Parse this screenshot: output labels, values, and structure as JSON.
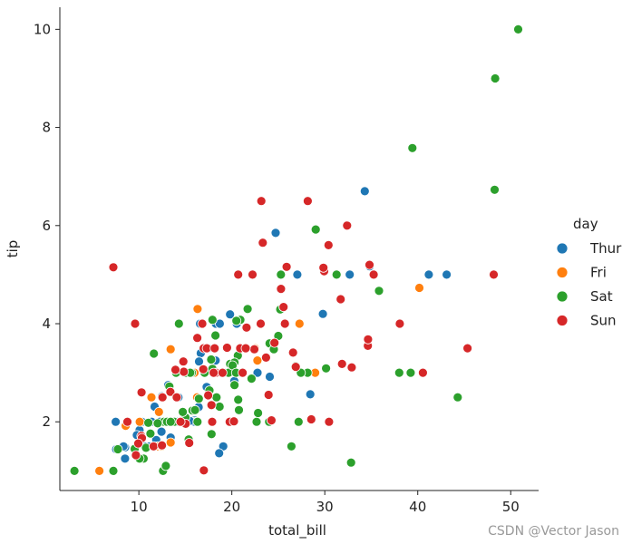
{
  "chart_data": {
    "type": "scatter",
    "xlabel": "total_bill",
    "ylabel": "tip",
    "xlim": [
      1.5,
      53
    ],
    "ylim": [
      0.6,
      10.45
    ],
    "xticks": [
      10,
      20,
      30,
      40,
      50
    ],
    "yticks": [
      2,
      4,
      6,
      8,
      10
    ],
    "grid": false,
    "legend": {
      "title": "day",
      "placement": "right"
    },
    "series": [
      {
        "name": "Thur",
        "color": "#1f77b4",
        "points": [
          [
            27.2,
            4.0
          ],
          [
            22.76,
            3.0
          ],
          [
            17.29,
            2.71
          ],
          [
            19.44,
            3.0
          ],
          [
            16.66,
            3.4
          ],
          [
            10.07,
            1.83
          ],
          [
            32.68,
            5.0
          ],
          [
            15.98,
            2.03
          ],
          [
            34.83,
            5.17
          ],
          [
            13.03,
            2.0
          ],
          [
            18.28,
            4.0
          ],
          [
            24.71,
            5.85
          ],
          [
            21.16,
            3.0
          ],
          [
            28.97,
            3.0
          ],
          [
            22.49,
            3.5
          ],
          [
            5.75,
            1.0
          ],
          [
            16.32,
            4.3
          ],
          [
            22.75,
            3.25
          ],
          [
            40.17,
            4.73
          ],
          [
            27.28,
            4.0
          ],
          [
            12.03,
            1.5
          ],
          [
            21.01,
            3.0
          ],
          [
            12.46,
            1.5
          ],
          [
            11.35,
            2.5
          ],
          [
            15.38,
            3.0
          ],
          [
            44.3,
            2.5
          ],
          [
            22.42,
            3.48
          ],
          [
            20.92,
            4.08
          ],
          [
            15.36,
            1.64
          ],
          [
            20.49,
            4.06
          ],
          [
            25.21,
            4.29
          ],
          [
            18.24,
            3.76
          ],
          [
            14.31,
            4.0
          ],
          [
            14.0,
            3.0
          ],
          [
            7.25,
            1.0
          ],
          [
            38.07,
            4.0
          ],
          [
            23.95,
            2.55
          ],
          [
            25.71,
            4.0
          ],
          [
            17.31,
            3.5
          ],
          [
            29.93,
            5.07
          ],
          [
            10.65,
            1.5
          ],
          [
            12.43,
            1.8
          ],
          [
            24.08,
            2.92
          ],
          [
            11.69,
            2.31
          ],
          [
            13.42,
            1.68
          ],
          [
            14.26,
            2.5
          ],
          [
            15.95,
            2.0
          ],
          [
            12.48,
            2.52
          ],
          [
            29.8,
            4.2
          ],
          [
            8.52,
            1.48
          ],
          [
            14.52,
            2.0
          ],
          [
            11.38,
            2.0
          ],
          [
            22.82,
            2.18
          ],
          [
            19.08,
            1.5
          ],
          [
            20.27,
            2.83
          ],
          [
            11.17,
            1.5
          ],
          [
            12.26,
            2.0
          ],
          [
            18.26,
            3.25
          ],
          [
            8.51,
            1.25
          ],
          [
            10.33,
            2.0
          ],
          [
            14.15,
            2.0
          ],
          [
            16.0,
            2.0
          ],
          [
            13.16,
            2.75
          ],
          [
            17.47,
            3.5
          ],
          [
            34.3,
            6.7
          ],
          [
            41.19,
            5.0
          ],
          [
            27.05,
            5.0
          ],
          [
            16.43,
            2.3
          ],
          [
            8.35,
            1.5
          ],
          [
            18.64,
            1.36
          ],
          [
            11.87,
            1.63
          ],
          [
            9.78,
            1.73
          ],
          [
            7.51,
            2.0
          ],
          [
            19.81,
            4.19
          ],
          [
            28.44,
            2.56
          ],
          [
            15.48,
            2.02
          ],
          [
            16.58,
            4.0
          ],
          [
            7.56,
            1.44
          ],
          [
            10.34,
            2.0
          ],
          [
            43.11,
            5.0
          ],
          [
            13.0,
            2.0
          ],
          [
            13.51,
            2.0
          ],
          [
            18.71,
            4.0
          ],
          [
            12.74,
            2.01
          ],
          [
            13.0,
            2.0
          ],
          [
            16.4,
            2.5
          ],
          [
            20.53,
            4.0
          ],
          [
            16.47,
            3.23
          ],
          [
            18.78,
            3.0
          ]
        ]
      },
      {
        "name": "Fri",
        "color": "#ff7f0e",
        "points": [
          [
            28.97,
            3.0
          ],
          [
            22.49,
            3.5
          ],
          [
            5.75,
            1.0
          ],
          [
            16.32,
            4.3
          ],
          [
            22.75,
            3.25
          ],
          [
            40.17,
            4.73
          ],
          [
            27.28,
            4.0
          ],
          [
            12.03,
            1.5
          ],
          [
            21.01,
            3.0
          ],
          [
            12.46,
            1.5
          ],
          [
            11.35,
            2.5
          ],
          [
            15.38,
            3.0
          ],
          [
            12.16,
            2.2
          ],
          [
            13.42,
            3.48
          ],
          [
            8.58,
            1.92
          ],
          [
            15.98,
            3.0
          ],
          [
            13.42,
            1.58
          ],
          [
            16.27,
            2.5
          ],
          [
            10.09,
            2.0
          ]
        ]
      },
      {
        "name": "Sat",
        "color": "#2ca02c",
        "points": [
          [
            20.65,
            3.35
          ],
          [
            17.92,
            4.08
          ],
          [
            20.29,
            2.75
          ],
          [
            15.77,
            2.23
          ],
          [
            39.42,
            7.58
          ],
          [
            19.82,
            3.18
          ],
          [
            17.81,
            2.34
          ],
          [
            13.37,
            2.0
          ],
          [
            12.69,
            2.0
          ],
          [
            21.7,
            4.3
          ],
          [
            19.65,
            3.0
          ],
          [
            9.55,
            1.45
          ],
          [
            18.35,
            2.5
          ],
          [
            15.06,
            3.0
          ],
          [
            20.69,
            2.45
          ],
          [
            17.78,
            3.27
          ],
          [
            24.06,
            3.6
          ],
          [
            16.31,
            2.0
          ],
          [
            16.93,
            3.07
          ],
          [
            18.69,
            2.31
          ],
          [
            31.27,
            5.0
          ],
          [
            16.04,
            2.24
          ],
          [
            38.01,
            3.0
          ],
          [
            26.41,
            1.5
          ],
          [
            11.24,
            1.76
          ],
          [
            48.27,
            6.73
          ],
          [
            20.29,
            3.21
          ],
          [
            13.81,
            2.0
          ],
          [
            11.02,
            1.98
          ],
          [
            18.29,
            3.76
          ],
          [
            17.59,
            2.64
          ],
          [
            20.08,
            3.15
          ],
          [
            16.45,
            2.47
          ],
          [
            3.07,
            1.0
          ],
          [
            20.23,
            2.01
          ],
          [
            15.01,
            2.09
          ],
          [
            12.02,
            1.97
          ],
          [
            17.07,
            3.0
          ],
          [
            26.86,
            3.14
          ],
          [
            25.28,
            5.0
          ],
          [
            14.73,
            2.2
          ],
          [
            10.51,
            1.25
          ],
          [
            17.92,
            3.08
          ],
          [
            44.3,
            2.5
          ],
          [
            22.42,
            3.48
          ],
          [
            20.92,
            4.08
          ],
          [
            15.36,
            1.64
          ],
          [
            20.49,
            4.06
          ],
          [
            25.21,
            4.29
          ],
          [
            18.24,
            3.76
          ],
          [
            14.31,
            4.0
          ],
          [
            14.0,
            3.0
          ],
          [
            7.25,
            1.0
          ],
          [
            48.33,
            9.0
          ],
          [
            20.45,
            3.0
          ],
          [
            13.28,
            2.72
          ],
          [
            22.12,
            2.88
          ],
          [
            24.01,
            2.0
          ],
          [
            15.69,
            3.0
          ],
          [
            11.61,
            3.39
          ],
          [
            10.77,
            1.47
          ],
          [
            15.53,
            3.0
          ],
          [
            10.07,
            1.25
          ],
          [
            12.6,
            1.0
          ],
          [
            32.83,
            1.17
          ],
          [
            35.83,
            4.67
          ],
          [
            29.03,
            5.92
          ],
          [
            27.18,
            2.0
          ],
          [
            22.67,
            2.0
          ],
          [
            17.82,
            1.75
          ],
          [
            28.15,
            3.0
          ],
          [
            50.81,
            10.0
          ],
          [
            25.56,
            4.34
          ],
          [
            12.9,
            1.1
          ],
          [
            28.55,
            2.05
          ],
          [
            30.46,
            2.0
          ],
          [
            7.74,
            1.44
          ],
          [
            39.24,
            3.0
          ],
          [
            25.0,
            3.75
          ],
          [
            13.03,
            2.0
          ],
          [
            20.76,
            2.24
          ],
          [
            18.15,
            3.5
          ],
          [
            23.1,
            4.0
          ],
          [
            11.59,
            1.5
          ],
          [
            24.52,
            3.48
          ],
          [
            27.18,
            2.0
          ],
          [
            22.82,
            2.18
          ],
          [
            26.88,
            3.12
          ],
          [
            27.43,
            3.0
          ],
          [
            30.14,
            3.09
          ],
          [
            18.43,
            3.0
          ],
          [
            13.42,
            2.0
          ]
        ]
      },
      {
        "name": "Sun",
        "color": "#d62728",
        "points": [
          [
            16.99,
            1.01
          ],
          [
            10.34,
            1.66
          ],
          [
            21.01,
            3.5
          ],
          [
            23.68,
            3.31
          ],
          [
            24.59,
            3.61
          ],
          [
            25.29,
            4.71
          ],
          [
            8.77,
            2.0
          ],
          [
            26.88,
            3.12
          ],
          [
            15.04,
            1.96
          ],
          [
            14.78,
            3.23
          ],
          [
            10.27,
            1.71
          ],
          [
            35.26,
            5.0
          ],
          [
            15.42,
            1.57
          ],
          [
            18.43,
            3.0
          ],
          [
            14.83,
            3.02
          ],
          [
            21.58,
            3.92
          ],
          [
            10.33,
            1.67
          ],
          [
            16.29,
            3.71
          ],
          [
            16.97,
            3.5
          ],
          [
            17.46,
            2.54
          ],
          [
            13.94,
            3.06
          ],
          [
            9.68,
            1.32
          ],
          [
            30.4,
            5.6
          ],
          [
            18.29,
            3.0
          ],
          [
            22.23,
            5.0
          ],
          [
            32.4,
            6.0
          ],
          [
            28.55,
            2.05
          ],
          [
            18.04,
            3.0
          ],
          [
            12.54,
            2.5
          ],
          [
            10.29,
            2.6
          ],
          [
            34.81,
            5.2
          ],
          [
            9.94,
            1.56
          ],
          [
            25.56,
            4.34
          ],
          [
            19.49,
            3.51
          ],
          [
            38.07,
            4.0
          ],
          [
            23.95,
            2.55
          ],
          [
            25.71,
            4.0
          ],
          [
            17.31,
            3.5
          ],
          [
            29.93,
            5.07
          ],
          [
            45.35,
            3.5
          ],
          [
            23.33,
            5.65
          ],
          [
            40.55,
            3.0
          ],
          [
            20.69,
            5.0
          ],
          [
            20.9,
            3.5
          ],
          [
            30.46,
            2.0
          ],
          [
            18.15,
            3.5
          ],
          [
            23.1,
            4.0
          ],
          [
            11.59,
            1.5
          ],
          [
            7.25,
            5.15
          ],
          [
            31.85,
            3.18
          ],
          [
            16.82,
            4.0
          ],
          [
            32.9,
            3.11
          ],
          [
            17.89,
            2.0
          ],
          [
            14.48,
            2.0
          ],
          [
            9.6,
            4.0
          ],
          [
            34.63,
            3.55
          ],
          [
            34.65,
            3.68
          ],
          [
            23.17,
            6.5
          ],
          [
            48.17,
            5.0
          ],
          [
            22.42,
            3.48
          ],
          [
            25.89,
            5.16
          ],
          [
            28.17,
            6.5
          ],
          [
            21.5,
            3.5
          ],
          [
            19.77,
            2.0
          ],
          [
            29.85,
            5.14
          ],
          [
            24.27,
            2.03
          ],
          [
            17.81,
            2.34
          ],
          [
            31.71,
            4.5
          ],
          [
            20.23,
            2.01
          ],
          [
            13.39,
            2.61
          ],
          [
            19.0,
            3.0
          ],
          [
            21.16,
            3.0
          ],
          [
            26.59,
            3.41
          ],
          [
            14.07,
            2.5
          ],
          [
            12.48,
            1.52
          ],
          [
            16.93,
            3.07
          ]
        ]
      }
    ]
  },
  "watermark": "CSDN @Vector Jason"
}
